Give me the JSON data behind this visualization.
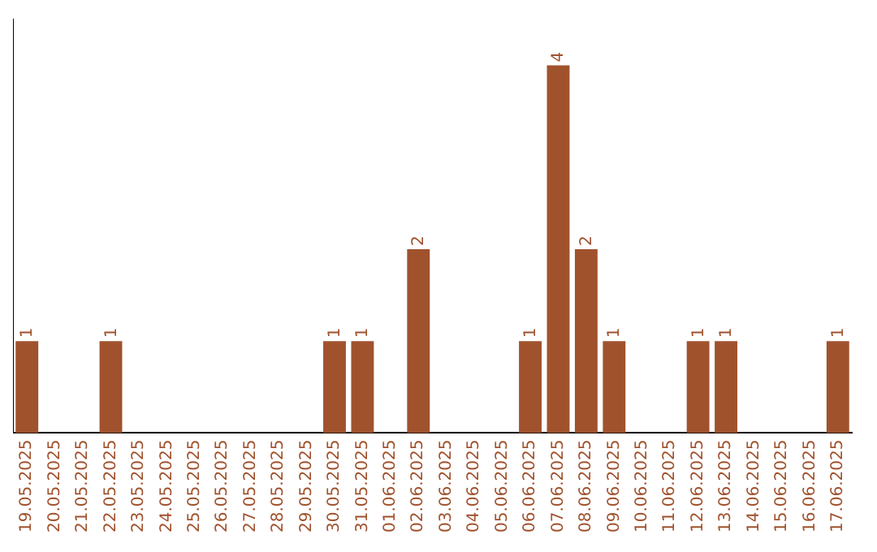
{
  "chart_data": {
    "type": "bar",
    "categories": [
      "19.05.2025",
      "20.05.2025",
      "21.05.2025",
      "22.05.2025",
      "23.05.2025",
      "24.05.2025",
      "25.05.2025",
      "26.05.2025",
      "27.05.2025",
      "28.05.2025",
      "29.05.2025",
      "30.05.2025",
      "31.05.2025",
      "01.06.2025",
      "02.06.2025",
      "03.06.2025",
      "04.06.2025",
      "05.06.2025",
      "06.06.2025",
      "07.06.2025",
      "08.06.2025",
      "09.06.2025",
      "10.06.2025",
      "11.06.2025",
      "12.06.2025",
      "13.06.2025",
      "14.06.2025",
      "15.06.2025",
      "16.06.2025",
      "17.06.2025"
    ],
    "values": [
      1,
      0,
      0,
      1,
      0,
      0,
      0,
      0,
      0,
      0,
      0,
      1,
      1,
      0,
      2,
      0,
      0,
      0,
      1,
      4,
      2,
      1,
      0,
      0,
      1,
      1,
      0,
      0,
      0,
      1
    ],
    "value_labels": [
      "1",
      null,
      null,
      "1",
      null,
      null,
      null,
      null,
      null,
      null,
      null,
      "1",
      "1",
      null,
      "2",
      null,
      null,
      null,
      "1",
      "4",
      "2",
      "1",
      null,
      null,
      "1",
      "1",
      null,
      null,
      null,
      "1"
    ],
    "color": "#a0522d",
    "grid": false,
    "legend": false
  }
}
